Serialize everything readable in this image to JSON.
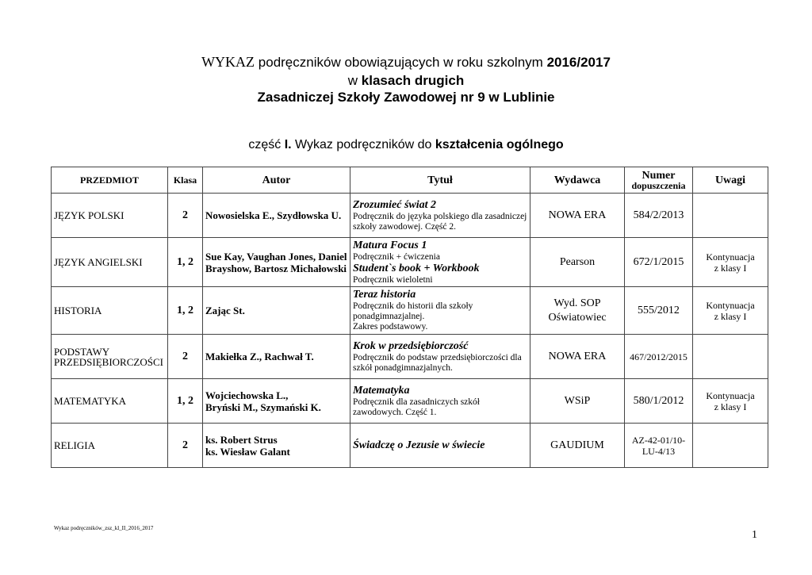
{
  "header": {
    "line1_prefix": "WYKAZ",
    "line1_text": "podręczników obowiązujących w roku szkolnym",
    "line1_year": "2016/2017",
    "line2_prefix": "w",
    "line2_bold": "klasach drugich",
    "line3": "Zasadniczej Szkoły Zawodowej nr 9 w Lublinie",
    "section_prefix": "część",
    "section_num": "I.",
    "section_text": "Wykaz podręczników do",
    "section_bold": "kształcenia ogólnego"
  },
  "table": {
    "columns": {
      "przedmiot": "PRZEDMIOT",
      "klasa": "Klasa",
      "autor": "Autor",
      "tytul": "Tytuł",
      "wydawca": "Wydawca",
      "numer": "Numer",
      "numer_sub": "dopuszczenia",
      "uwagi": "Uwagi"
    },
    "rows": [
      {
        "przedmiot": [
          "JĘZYK POLSKI"
        ],
        "klasa": "2",
        "autor": [
          "Nowosielska E., Szydłowska U."
        ],
        "tytul": [
          {
            "t": "Zrozumieć świat 2",
            "b": true
          },
          {
            "t": "Podręcznik do języka polskiego dla zasadniczej szkoły zawodowej. Część 2.",
            "b": false
          }
        ],
        "wydawca": [
          "NOWA ERA"
        ],
        "numer": [
          "584/2/2013"
        ],
        "uwagi": []
      },
      {
        "przedmiot": [
          "JĘZYK ANGIELSKI"
        ],
        "klasa": "1, 2",
        "autor": [
          "Sue Kay, Vaughan Jones, Daniel Brayshow, Bartosz Michałowski"
        ],
        "tytul": [
          {
            "t": "Matura Focus 1",
            "b": true
          },
          {
            "t": "Podręcznik  + ćwiczenia",
            "b": false
          },
          {
            "t": "Student`s book + Workbook",
            "b": true
          },
          {
            "t": "Podręcznik wieloletni",
            "b": false
          }
        ],
        "wydawca": [
          "Pearson"
        ],
        "numer": [
          "672/1/2015"
        ],
        "uwagi": [
          "Kontynuacja",
          "z klasy I"
        ]
      },
      {
        "przedmiot": [
          "HISTORIA"
        ],
        "klasa": "1, 2",
        "autor": [
          "Zając St."
        ],
        "tytul": [
          {
            "t": "Teraz historia",
            "b": true
          },
          {
            "t": "Podręcznik do historii dla szkoły ponadgimnazjalnej.",
            "b": false
          },
          {
            "t": "Zakres podstawowy.",
            "b": false
          }
        ],
        "wydawca": [
          "Wyd. SOP",
          "Oświatowiec"
        ],
        "numer": [
          "555/2012"
        ],
        "uwagi": [
          "Kontynuacja",
          "z klasy I"
        ]
      },
      {
        "przedmiot": [
          "PODSTAWY",
          "PRZEDSIĘBIORCZOŚCI"
        ],
        "klasa": "2",
        "autor": [
          "Makiełka Z., Rachwał T."
        ],
        "tytul": [
          {
            "t": "Krok w przedsiębiorczość",
            "b": true
          },
          {
            "t": "Podręcznik do podstaw przedsiębiorczości dla szkół ponadgimnazjalnych.",
            "b": false
          }
        ],
        "wydawca": [
          "NOWA ERA"
        ],
        "numer": [
          "467/2012/2015"
        ],
        "uwagi": []
      },
      {
        "przedmiot": [
          "MATEMATYKA"
        ],
        "klasa": "1, 2",
        "autor": [
          "Wojciechowska L.,",
          "Bryński M., Szymański K."
        ],
        "tytul": [
          {
            "t": "Matematyka",
            "b": true
          },
          {
            "t": "Podręcznik dla zasadniczych szkół zawodowych. Część 1.",
            "b": false
          }
        ],
        "wydawca": [
          "WSiP"
        ],
        "numer": [
          "580/1/2012"
        ],
        "uwagi": [
          "Kontynuacja",
          "z klasy I"
        ]
      },
      {
        "przedmiot": [
          "RELIGIA"
        ],
        "klasa": "2",
        "autor": [
          "ks. Robert Strus",
          "ks. Wiesław Galant"
        ],
        "tytul": [
          {
            "t": "Świadczę o Jezusie w świecie",
            "b": true
          }
        ],
        "wydawca": [
          "GAUDIUM"
        ],
        "numer": [
          "AZ-42-01/10-",
          "LU-4/13"
        ],
        "uwagi": []
      }
    ]
  },
  "footer": {
    "filename": "Wykaz podręczników_zsz_kl_II_2016_2017",
    "page": "1"
  }
}
